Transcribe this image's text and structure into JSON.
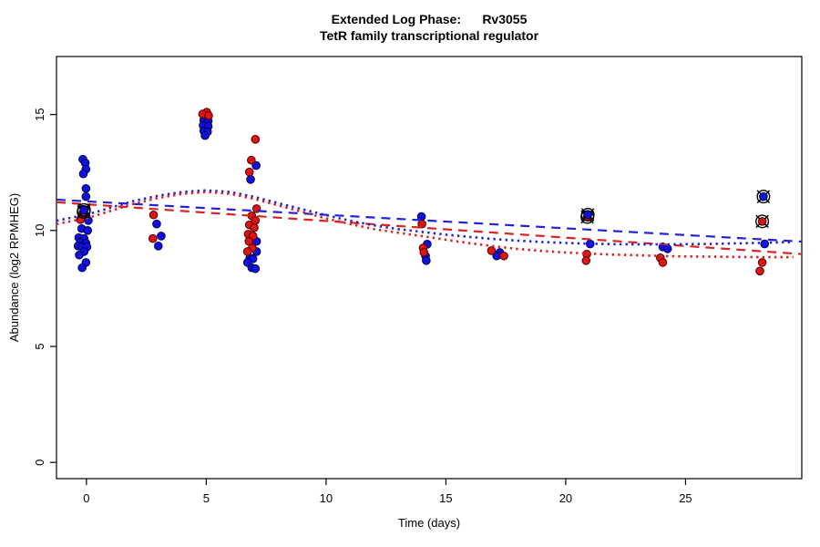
{
  "chart_data": {
    "type": "scatter",
    "title": "Extended Log Phase:      Rv3055",
    "subtitle": "TetR family transcriptional regulator",
    "xlabel": "Time  (days)",
    "ylabel": "Abundance  (log2 RPMHEG)",
    "xlim": [
      -1.25,
      29.85
    ],
    "ylim": [
      -0.7,
      17.5
    ],
    "xticks": [
      0,
      5,
      10,
      15,
      20,
      25
    ],
    "yticks": [
      0,
      5,
      10,
      15
    ],
    "grid": false,
    "legend": null,
    "colors": {
      "blue_series": "#1010e0",
      "red_series": "#dc1414",
      "blue_line": "#2222dd",
      "red_line": "#dd2222",
      "flag_marker": "#000000",
      "axis": "#000000"
    },
    "series": [
      {
        "name": "blue-samples",
        "marker": "circle",
        "color": "#1010e0",
        "edge": "#000050",
        "points": [
          [
            -0.15,
            13.07
          ],
          [
            -0.05,
            12.91
          ],
          [
            -0.02,
            12.64
          ],
          [
            -0.13,
            12.44
          ],
          [
            -0.02,
            11.81
          ],
          [
            -0.02,
            11.46
          ],
          [
            -0.02,
            10.63
          ],
          [
            0.08,
            10.43
          ],
          [
            -0.2,
            10.08
          ],
          [
            0.05,
            10.0
          ],
          [
            -0.32,
            9.69
          ],
          [
            -0.1,
            9.65
          ],
          [
            -0.25,
            9.49
          ],
          [
            -0.02,
            9.45
          ],
          [
            -0.35,
            9.33
          ],
          [
            -0.18,
            9.29
          ],
          [
            0.02,
            9.29
          ],
          [
            -0.1,
            9.09
          ],
          [
            -0.3,
            8.94
          ],
          [
            -0.02,
            8.62
          ],
          [
            -0.18,
            8.39
          ],
          [
            2.93,
            10.28
          ],
          [
            3.12,
            9.76
          ],
          [
            3.0,
            9.33
          ],
          [
            4.9,
            14.76
          ],
          [
            5.08,
            14.72
          ],
          [
            4.87,
            14.53
          ],
          [
            5.08,
            14.49
          ],
          [
            4.9,
            14.29
          ],
          [
            5.05,
            14.25
          ],
          [
            4.95,
            14.09
          ],
          [
            7.08,
            12.8
          ],
          [
            6.85,
            12.2
          ],
          [
            7.1,
            9.53
          ],
          [
            7.1,
            9.09
          ],
          [
            6.82,
            8.82
          ],
          [
            6.95,
            8.78
          ],
          [
            6.72,
            8.62
          ],
          [
            6.9,
            8.39
          ],
          [
            7.05,
            8.35
          ],
          [
            13.98,
            10.6
          ],
          [
            14.22,
            9.41
          ],
          [
            14.15,
            8.9
          ],
          [
            14.18,
            8.7
          ],
          [
            17.25,
            9.05
          ],
          [
            17.12,
            8.9
          ],
          [
            21.02,
            9.42
          ],
          [
            24.05,
            9.29
          ],
          [
            24.25,
            9.21
          ],
          [
            28.3,
            9.42
          ]
        ]
      },
      {
        "name": "red-samples",
        "marker": "circle",
        "color": "#dc1414",
        "edge": "#500000",
        "points": [
          [
            -0.25,
            10.47
          ],
          [
            2.8,
            10.67
          ],
          [
            2.77,
            9.65
          ],
          [
            5.02,
            15.1
          ],
          [
            4.85,
            15.02
          ],
          [
            5.1,
            14.95
          ],
          [
            7.05,
            13.93
          ],
          [
            6.88,
            13.03
          ],
          [
            6.8,
            12.52
          ],
          [
            7.1,
            10.94
          ],
          [
            6.9,
            10.63
          ],
          [
            7.05,
            10.43
          ],
          [
            6.8,
            10.24
          ],
          [
            7.0,
            10.12
          ],
          [
            6.75,
            9.84
          ],
          [
            6.95,
            9.76
          ],
          [
            6.78,
            9.53
          ],
          [
            6.92,
            9.25
          ],
          [
            6.72,
            9.09
          ],
          [
            14.0,
            10.28
          ],
          [
            14.05,
            9.25
          ],
          [
            14.08,
            9.06
          ],
          [
            16.9,
            9.13
          ],
          [
            17.42,
            8.9
          ],
          [
            20.88,
            8.98
          ],
          [
            20.85,
            8.7
          ],
          [
            23.95,
            8.82
          ],
          [
            24.05,
            8.62
          ],
          [
            28.2,
            8.62
          ],
          [
            28.1,
            8.25
          ]
        ]
      },
      {
        "name": "flagged-red-reference",
        "marker": "circle-x",
        "color": "#dc1414",
        "edge": "#500000",
        "points": [
          [
            -0.12,
            10.8
          ],
          [
            20.9,
            10.58
          ],
          [
            28.2,
            10.39
          ]
        ]
      },
      {
        "name": "flagged-blue-reference",
        "marker": "circle-x",
        "color": "#1010e0",
        "edge": "#000050",
        "points": [
          [
            -0.1,
            10.88
          ],
          [
            20.92,
            10.68
          ],
          [
            28.25,
            11.46
          ]
        ]
      }
    ],
    "lines": [
      {
        "name": "blue-linear-fit",
        "style": "dashed",
        "color": "#2222dd",
        "points": [
          [
            -1.25,
            11.33
          ],
          [
            29.85,
            9.52
          ]
        ]
      },
      {
        "name": "red-linear-fit",
        "style": "dashed",
        "color": "#dd2222",
        "points": [
          [
            -1.25,
            11.22
          ],
          [
            29.85,
            8.98
          ]
        ]
      },
      {
        "name": "blue-smooth-fit",
        "style": "dotted",
        "color": "#2222dd",
        "points": [
          [
            -1.25,
            10.42
          ],
          [
            0,
            10.68
          ],
          [
            1,
            10.98
          ],
          [
            2,
            11.28
          ],
          [
            3,
            11.5
          ],
          [
            4,
            11.66
          ],
          [
            5,
            11.73
          ],
          [
            6,
            11.66
          ],
          [
            7,
            11.45
          ],
          [
            8,
            11.18
          ],
          [
            9,
            10.92
          ],
          [
            10,
            10.66
          ],
          [
            11,
            10.42
          ],
          [
            12,
            10.22
          ],
          [
            13,
            10.06
          ],
          [
            14,
            9.94
          ],
          [
            15,
            9.82
          ],
          [
            16,
            9.72
          ],
          [
            17,
            9.63
          ],
          [
            18,
            9.56
          ],
          [
            19,
            9.5
          ],
          [
            20,
            9.46
          ],
          [
            21,
            9.43
          ],
          [
            22,
            9.41
          ],
          [
            23,
            9.4
          ],
          [
            24,
            9.4
          ],
          [
            25,
            9.41
          ],
          [
            26,
            9.42
          ],
          [
            27,
            9.44
          ],
          [
            28,
            9.46
          ],
          [
            29,
            9.49
          ],
          [
            29.5,
            9.5
          ]
        ]
      },
      {
        "name": "red-smooth-fit",
        "style": "dotted",
        "color": "#dd2222",
        "points": [
          [
            -1.25,
            10.28
          ],
          [
            0,
            10.52
          ],
          [
            1,
            10.84
          ],
          [
            2,
            11.16
          ],
          [
            3,
            11.4
          ],
          [
            4,
            11.58
          ],
          [
            5,
            11.66
          ],
          [
            6,
            11.58
          ],
          [
            7,
            11.36
          ],
          [
            8,
            11.08
          ],
          [
            9,
            10.8
          ],
          [
            10,
            10.52
          ],
          [
            11,
            10.28
          ],
          [
            12,
            10.06
          ],
          [
            13,
            9.9
          ],
          [
            14,
            9.76
          ],
          [
            15,
            9.6
          ],
          [
            16,
            9.45
          ],
          [
            17,
            9.32
          ],
          [
            18,
            9.2
          ],
          [
            19,
            9.12
          ],
          [
            20,
            9.05
          ],
          [
            21,
            9.0
          ],
          [
            22,
            8.96
          ],
          [
            23,
            8.93
          ],
          [
            24,
            8.9
          ],
          [
            25,
            8.88
          ],
          [
            26,
            8.87
          ],
          [
            27,
            8.86
          ],
          [
            28,
            8.85
          ],
          [
            29,
            8.85
          ],
          [
            29.5,
            8.85
          ]
        ]
      }
    ]
  }
}
